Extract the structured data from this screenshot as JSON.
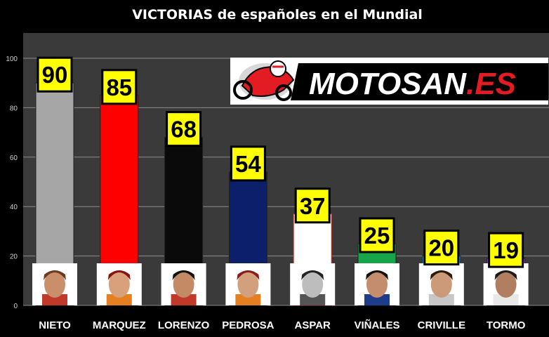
{
  "chart_data": {
    "type": "bar",
    "title": "VICTORIAS de españoles en el Mundial",
    "xlabel": "",
    "ylabel": "",
    "ylim": [
      0,
      110
    ],
    "yticks": [
      0,
      20,
      40,
      60,
      80,
      100
    ],
    "grid": true,
    "categories": [
      "NIETO",
      "MARQUEZ",
      "LORENZO",
      "PEDROSA",
      "ASPAR",
      "VIÑALES",
      "CRIVILLE",
      "TORMO"
    ],
    "values": [
      90,
      85,
      68,
      54,
      37,
      25,
      20,
      19
    ],
    "bar_colors": [
      "#a6a6a6",
      "#ff0000",
      "#0a0a0a",
      "#0c1f6b",
      "#ffffff",
      "#17a54a",
      "#1ea9e8",
      "#8a3fc0"
    ],
    "data_labels": [
      "90",
      "85",
      "68",
      "54",
      "37",
      "25",
      "20",
      "19"
    ]
  },
  "logo": {
    "main": "MOTOSAN",
    "suffix": ".ES"
  }
}
